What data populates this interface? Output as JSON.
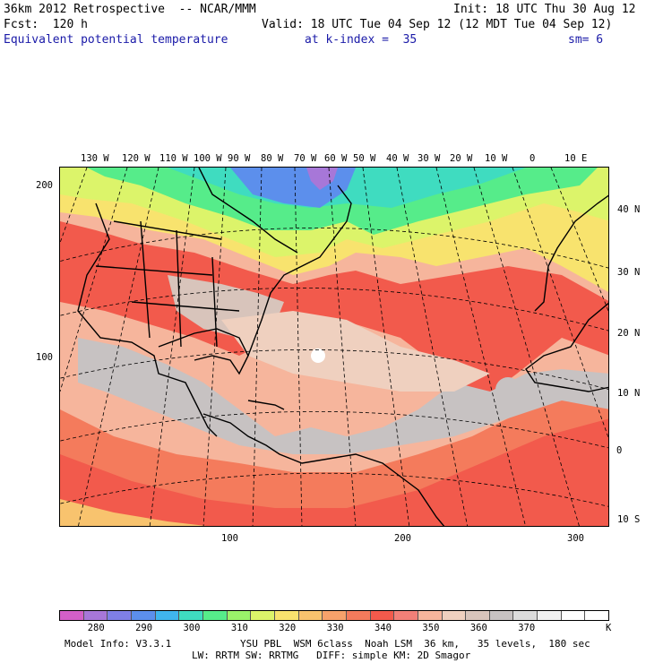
{
  "header": {
    "line1_left": "36km 2012 Retrospective  -- NCAR/MMM",
    "line1_right": "Init: 18 UTC Thu 30 Aug 12",
    "line2_left": "Fcst:  120 h",
    "line2_right": "Valid: 18 UTC Tue 04 Sep 12 (12 MDT Tue 04 Sep 12)",
    "field_name": "Equivalent potential temperature",
    "level_label": "at k-index =  35",
    "smoothing": "sm= 6"
  },
  "map": {
    "top_lon_labels": [
      "130 W",
      "120 W",
      "110 W",
      "100 W",
      "90 W",
      "80 W",
      "70 W",
      "60 W",
      "50 W",
      "40 W",
      "30 W",
      "20 W",
      "10 W",
      "0",
      "10 E"
    ],
    "right_lat_labels": [
      "40 N",
      "30 N",
      "20 N",
      "10 N",
      "0",
      "10 S"
    ],
    "left_grid_labels": [
      "200",
      "100"
    ],
    "bottom_grid_labels": [
      "100",
      "200",
      "300"
    ]
  },
  "colorbar": {
    "colors": [
      "#d35fc8",
      "#a777d8",
      "#7f7fe6",
      "#5c8fec",
      "#40b5ee",
      "#3fdcc0",
      "#56ec8a",
      "#9af26a",
      "#dcf46a",
      "#f8e36e",
      "#f8c36e",
      "#f7a26b",
      "#f47b5c",
      "#f25a4c",
      "#f28078",
      "#f6b59c",
      "#efd0bf",
      "#d8c4bb",
      "#c7c2c2",
      "#dcdcdc",
      "#f0f0f0",
      "#ffffff",
      "#ffffff"
    ],
    "tick_labels": [
      "280",
      "290",
      "300",
      "310",
      "320",
      "330",
      "340",
      "350",
      "360",
      "370"
    ],
    "unit": "K"
  },
  "footer": {
    "line1_left": "Model Info: V3.3.1",
    "line1_right": "YSU PBL  WSM 6class  Noah LSM  36 km,   35 levels,  180 sec",
    "line2": "LW: RRTM SW: RRTMG   DIFF: simple KM: 2D Smagor"
  },
  "colors": {
    "header_blue": "#1a1aa8",
    "coast": "#000000",
    "grid_dash": "#000000"
  }
}
